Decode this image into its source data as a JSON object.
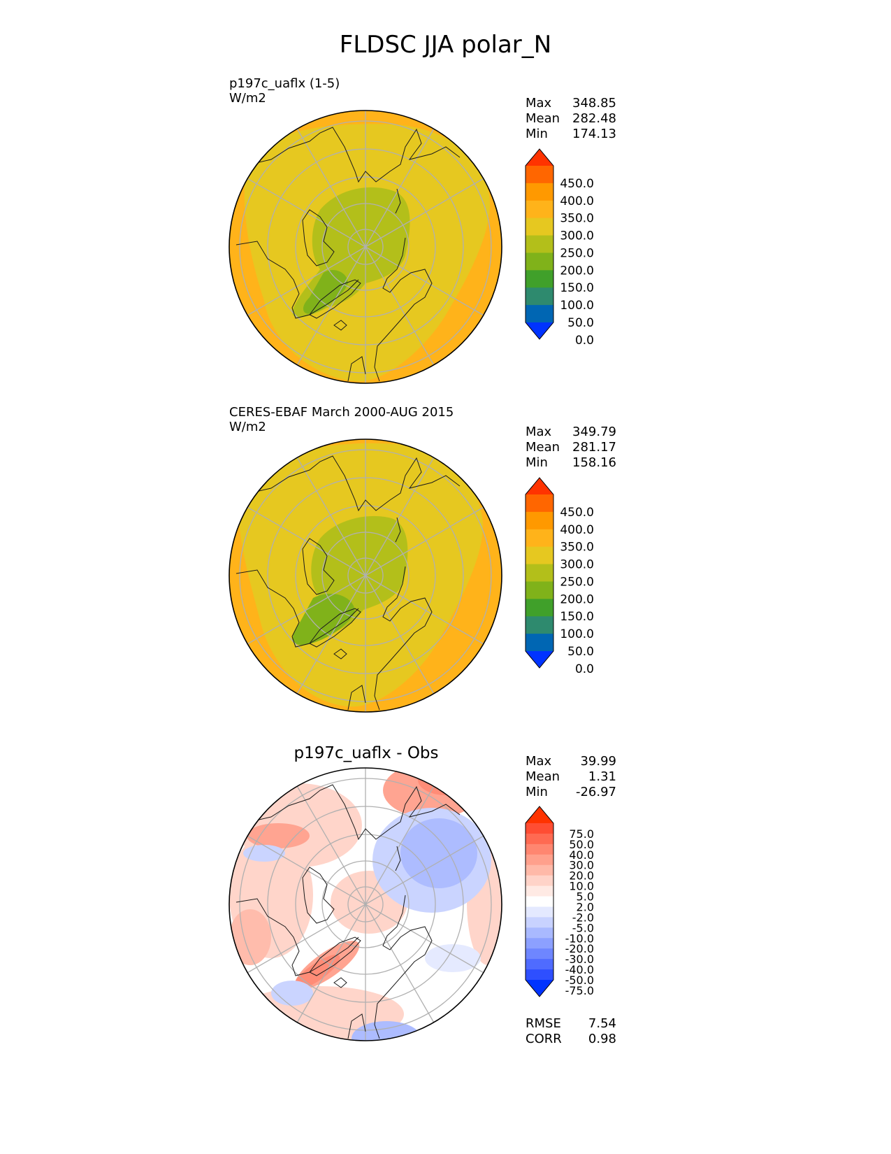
{
  "figure": {
    "title": "FLDSC JJA polar_N"
  },
  "panels": [
    {
      "title": "p197c_uaflx (1-5)",
      "units": "W/m2",
      "stats": [
        {
          "label": "Max",
          "value": "348.85"
        },
        {
          "label": "Mean",
          "value": "282.48"
        },
        {
          "label": "Min",
          "value": "174.13"
        }
      ]
    },
    {
      "title": "CERES-EBAF March 2000-AUG 2015",
      "units": "W/m2",
      "stats": [
        {
          "label": "Max",
          "value": "349.79"
        },
        {
          "label": "Mean",
          "value": "281.17"
        },
        {
          "label": "Min",
          "value": "158.16"
        }
      ]
    },
    {
      "title": "p197c_uaflx - Obs",
      "stats": [
        {
          "label": "Max",
          "value": "39.99"
        },
        {
          "label": "Mean",
          "value": "1.31"
        },
        {
          "label": "Min",
          "value": "-26.97"
        }
      ],
      "extra_stats": [
        {
          "label": "RMSE",
          "value": "7.54"
        },
        {
          "label": "CORR",
          "value": "0.98"
        }
      ]
    }
  ],
  "chart_data": [
    {
      "type": "heatmap",
      "title": "p197c_uaflx (1-5)",
      "projection": "north polar stereographic",
      "colorbar": {
        "ticks": [
          "450.0",
          "400.0",
          "350.0",
          "300.0",
          "250.0",
          "200.0",
          "150.0",
          "100.0",
          "50.0",
          "0.0"
        ],
        "colors": [
          "#ff3300",
          "#ff6600",
          "#ff9900",
          "#ffb31a",
          "#e6c820",
          "#b3bf1a",
          "#80b21a",
          "#40a02a",
          "#2e8a6e",
          "#0066b3",
          "#0033ff"
        ],
        "extend": "both"
      },
      "stats": {
        "max": 348.85,
        "mean": 282.48,
        "min": 174.13
      },
      "fields": {
        "outer": "#ffb31a",
        "mid": "#e6c820",
        "arctic": "#b3bf1a",
        "greenland": "#80b21a"
      }
    },
    {
      "type": "heatmap",
      "title": "CERES-EBAF March 2000-AUG 2015",
      "projection": "north polar stereographic",
      "colorbar": {
        "ticks": [
          "450.0",
          "400.0",
          "350.0",
          "300.0",
          "250.0",
          "200.0",
          "150.0",
          "100.0",
          "50.0",
          "0.0"
        ],
        "colors": [
          "#ff3300",
          "#ff6600",
          "#ff9900",
          "#ffb31a",
          "#e6c820",
          "#b3bf1a",
          "#80b21a",
          "#40a02a",
          "#2e8a6e",
          "#0066b3",
          "#0033ff"
        ],
        "extend": "both"
      },
      "stats": {
        "max": 349.79,
        "mean": 281.17,
        "min": 158.16
      },
      "fields": {
        "outer": "#ffb31a",
        "mid": "#e6c820",
        "arctic": "#b3bf1a",
        "greenland": "#80b21a"
      }
    },
    {
      "type": "heatmap",
      "title": "p197c_uaflx - Obs",
      "projection": "north polar stereographic",
      "colorbar": {
        "ticks": [
          "75.0",
          "50.0",
          "40.0",
          "30.0",
          "20.0",
          "10.0",
          "5.0",
          "2.0",
          "-2.0",
          "-5.0",
          "-10.0",
          "-20.0",
          "-30.0",
          "-40.0",
          "-50.0",
          "-75.0"
        ],
        "colors": [
          "#ff3300",
          "#ff4d33",
          "#ff6a52",
          "#ff8670",
          "#ffa08c",
          "#ffb9a8",
          "#ffd3c8",
          "#ffeae4",
          "#ffffff",
          "#e4e9ff",
          "#c8d2ff",
          "#a9b9ff",
          "#8ca0ff",
          "#6e86ff",
          "#4f6bff",
          "#2e4fff",
          "#0033ff"
        ],
        "extend": "both"
      },
      "stats": {
        "max": 39.99,
        "mean": 1.31,
        "min": -26.97,
        "rmse": 7.54,
        "corr": 0.98
      }
    }
  ]
}
